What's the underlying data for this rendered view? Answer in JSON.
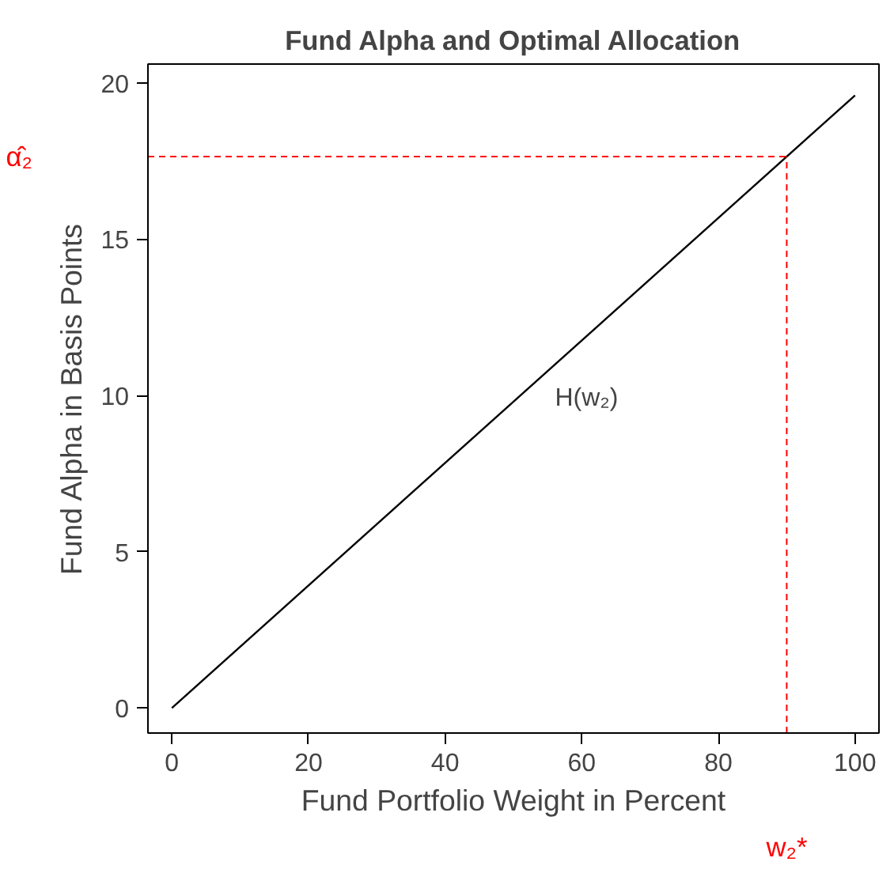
{
  "chart_data": {
    "type": "line",
    "title": "Fund Alpha and Optimal Allocation",
    "xlabel": "Fund Portfolio Weight in Percent",
    "ylabel": "Fund Alpha in Basis Points",
    "x": [
      0,
      100
    ],
    "series": [
      {
        "color": "#000000",
        "values": [
          0,
          19.6
        ]
      }
    ],
    "xlim": [
      -3.5,
      103.5
    ],
    "ylim": [
      -0.8,
      20.6
    ],
    "xticks": [
      0,
      20,
      40,
      60,
      80,
      100
    ],
    "yticks": [
      0,
      5,
      10,
      15,
      20
    ],
    "marker": "none",
    "line_style": "solid",
    "ref_lines": [
      {
        "axis": "y",
        "value": 17.64,
        "label": "α̂₂",
        "color": "#ff0000",
        "line_style": "dashed"
      },
      {
        "axis": "x",
        "value": 90,
        "label": "w₂*",
        "color": "#ff0000",
        "line_style": "dashed"
      }
    ],
    "annotations": [
      "H(w₂)"
    ]
  }
}
